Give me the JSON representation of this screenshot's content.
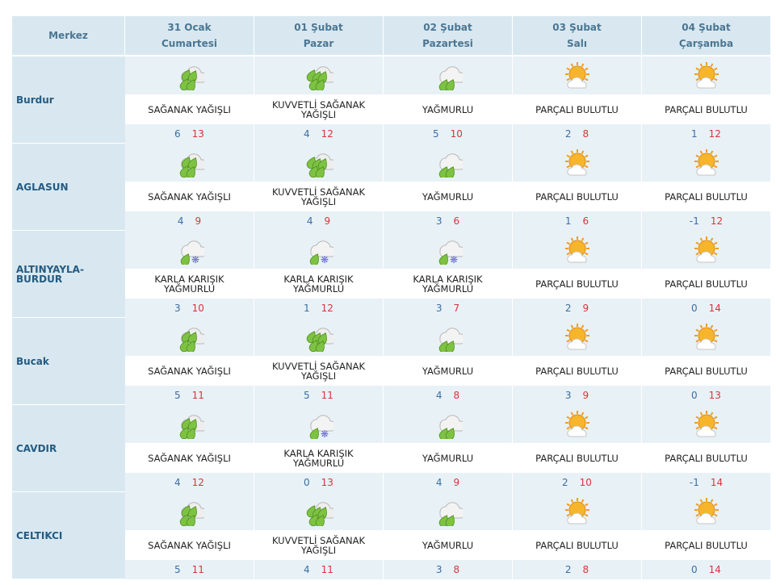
{
  "header": {
    "merkez_label": "Merkez",
    "days": [
      {
        "date": "31 Ocak",
        "weekday": "Cumartesi"
      },
      {
        "date": "01 Şubat",
        "weekday": "Pazar"
      },
      {
        "date": "02 Şubat",
        "weekday": "Pazartesi"
      },
      {
        "date": "03 Şubat",
        "weekday": "Salı"
      },
      {
        "date": "04 Şubat",
        "weekday": "Çarşamba"
      }
    ]
  },
  "colors": {
    "header_bg": "#d9e8f0",
    "min_temp": "#3b6ea5",
    "max_temp": "#d9353c",
    "city_text": "#245b82"
  },
  "rows": [
    {
      "city": "Burdur",
      "days": [
        {
          "icon": "shower-rain-icon",
          "desc": "SAĞANAK YAĞIŞLI",
          "min": "6",
          "max": "13"
        },
        {
          "icon": "heavy-shower-icon",
          "desc": "KUVVETLİ SAĞANAK YAĞIŞLI",
          "min": "4",
          "max": "12"
        },
        {
          "icon": "rain-icon",
          "desc": "YAĞMURLU",
          "min": "5",
          "max": "10"
        },
        {
          "icon": "partly-cloudy-icon",
          "desc": "PARÇALI BULUTLU",
          "min": "2",
          "max": "8"
        },
        {
          "icon": "partly-cloudy-icon",
          "desc": "PARÇALI BULUTLU",
          "min": "1",
          "max": "12"
        }
      ]
    },
    {
      "city": "AGLASUN",
      "days": [
        {
          "icon": "shower-rain-icon",
          "desc": "SAĞANAK YAĞIŞLI",
          "min": "4",
          "max": "9"
        },
        {
          "icon": "heavy-shower-icon",
          "desc": "KUVVETLİ SAĞANAK YAĞIŞLI",
          "min": "4",
          "max": "9"
        },
        {
          "icon": "rain-icon",
          "desc": "YAĞMURLU",
          "min": "3",
          "max": "6"
        },
        {
          "icon": "partly-cloudy-icon",
          "desc": "PARÇALI BULUTLU",
          "min": "1",
          "max": "6"
        },
        {
          "icon": "partly-cloudy-icon",
          "desc": "PARÇALI BULUTLU",
          "min": "-1",
          "max": "12"
        }
      ]
    },
    {
      "city": "ALTINYAYLA-BURDUR",
      "days": [
        {
          "icon": "sleet-icon",
          "desc": "KARLA KARIŞIK YAĞMURLU",
          "min": "3",
          "max": "10"
        },
        {
          "icon": "sleet-icon",
          "desc": "KARLA KARIŞIK YAĞMURLU",
          "min": "1",
          "max": "12"
        },
        {
          "icon": "sleet-icon",
          "desc": "KARLA KARIŞIK YAĞMURLU",
          "min": "3",
          "max": "7"
        },
        {
          "icon": "partly-cloudy-icon",
          "desc": "PARÇALI BULUTLU",
          "min": "2",
          "max": "9"
        },
        {
          "icon": "partly-cloudy-icon",
          "desc": "PARÇALI BULUTLU",
          "min": "0",
          "max": "14"
        }
      ]
    },
    {
      "city": "Bucak",
      "days": [
        {
          "icon": "shower-rain-icon",
          "desc": "SAĞANAK YAĞIŞLI",
          "min": "5",
          "max": "11"
        },
        {
          "icon": "heavy-shower-icon",
          "desc": "KUVVETLİ SAĞANAK YAĞIŞLI",
          "min": "5",
          "max": "11"
        },
        {
          "icon": "rain-icon",
          "desc": "YAĞMURLU",
          "min": "4",
          "max": "8"
        },
        {
          "icon": "partly-cloudy-icon",
          "desc": "PARÇALI BULUTLU",
          "min": "3",
          "max": "9"
        },
        {
          "icon": "partly-cloudy-icon",
          "desc": "PARÇALI BULUTLU",
          "min": "0",
          "max": "13"
        }
      ]
    },
    {
      "city": "CAVDIR",
      "days": [
        {
          "icon": "shower-rain-icon",
          "desc": "SAĞANAK YAĞIŞLI",
          "min": "4",
          "max": "12"
        },
        {
          "icon": "sleet-icon",
          "desc": "KARLA KARIŞIK YAĞMURLU",
          "min": "0",
          "max": "13"
        },
        {
          "icon": "rain-icon",
          "desc": "YAĞMURLU",
          "min": "4",
          "max": "9"
        },
        {
          "icon": "partly-cloudy-icon",
          "desc": "PARÇALI BULUTLU",
          "min": "2",
          "max": "10"
        },
        {
          "icon": "partly-cloudy-icon",
          "desc": "PARÇALI BULUTLU",
          "min": "-1",
          "max": "14"
        }
      ]
    },
    {
      "city": "CELTIKCI",
      "days": [
        {
          "icon": "shower-rain-icon",
          "desc": "SAĞANAK YAĞIŞLI",
          "min": "5",
          "max": "11"
        },
        {
          "icon": "heavy-shower-icon",
          "desc": "KUVVETLİ SAĞANAK YAĞIŞLI",
          "min": "4",
          "max": "11"
        },
        {
          "icon": "rain-icon",
          "desc": "YAĞMURLU",
          "min": "3",
          "max": "8"
        },
        {
          "icon": "partly-cloudy-icon",
          "desc": "PARÇALI BULUTLU",
          "min": "2",
          "max": "8"
        },
        {
          "icon": "partly-cloudy-icon",
          "desc": "PARÇALI BULUTLU",
          "min": "0",
          "max": "14"
        }
      ]
    }
  ]
}
